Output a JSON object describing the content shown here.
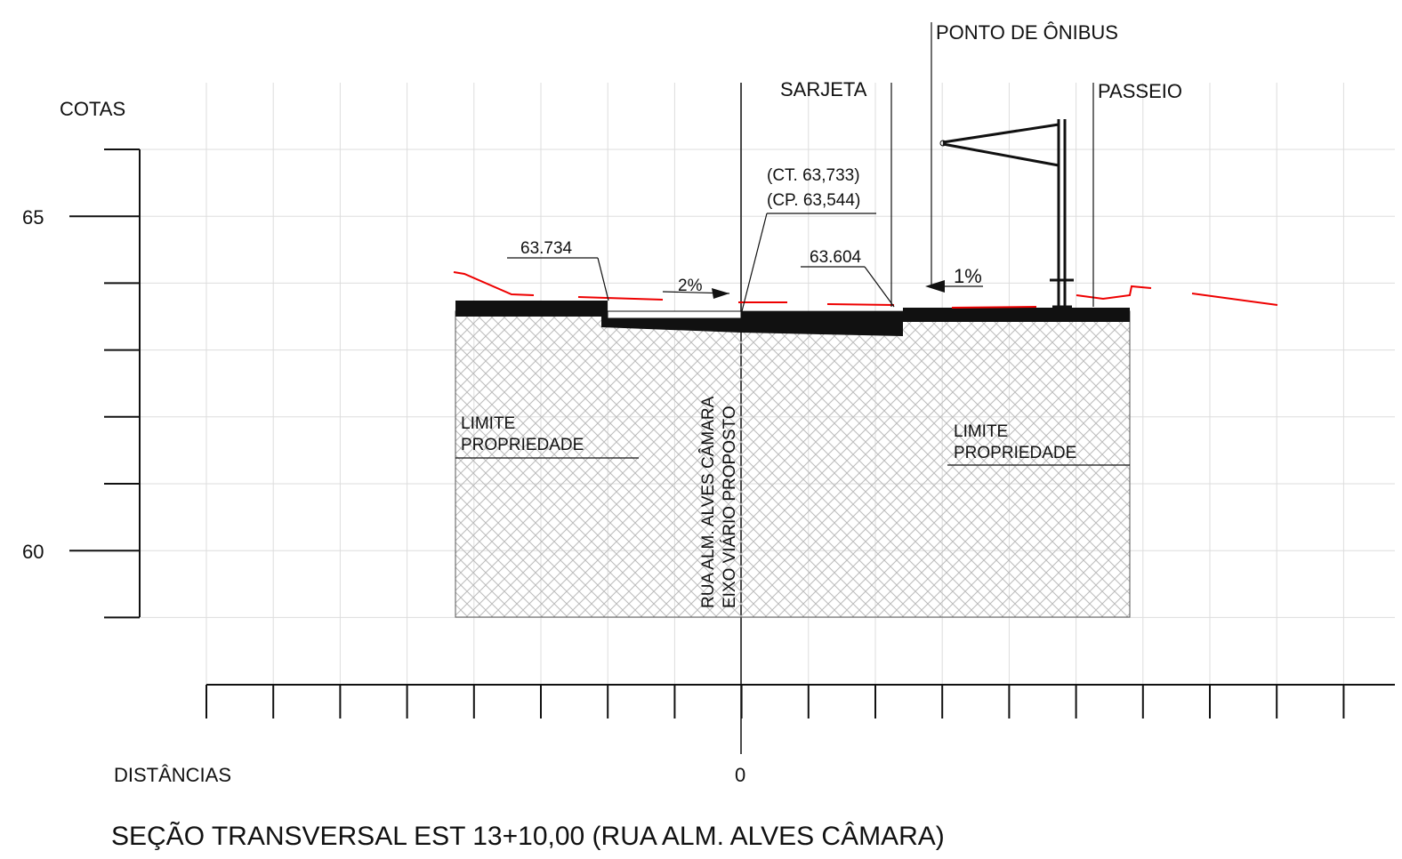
{
  "axes": {
    "y_title": "COTAS",
    "y_labels": [
      "65",
      "60"
    ],
    "x_title": "DISTÂNCIAS",
    "x_labels": [
      "0"
    ]
  },
  "title": "SEÇÃO TRANSVERSAL EST 13+10,00 (RUA ALM. ALVES CÂMARA)",
  "labels": {
    "bus_stop": "PONTO DE ÔNIBUS",
    "gutter": "SARJETA",
    "sidewalk": "PASSEIO",
    "ct": "(CT. 63,733)",
    "cp": "(CP. 63,544)",
    "elev_left": "63.734",
    "elev_right": "63.604",
    "slope_left": "2%",
    "slope_right": "1%",
    "limit_left": [
      "LIMITE",
      "PROPRIEDADE"
    ],
    "limit_right": [
      "LIMITE",
      "PROPRIEDADE"
    ],
    "axis_name": [
      "RUA ALM. ALVES CÂMARA",
      "EIXO VIÁRIO PROPOSTO"
    ]
  }
}
